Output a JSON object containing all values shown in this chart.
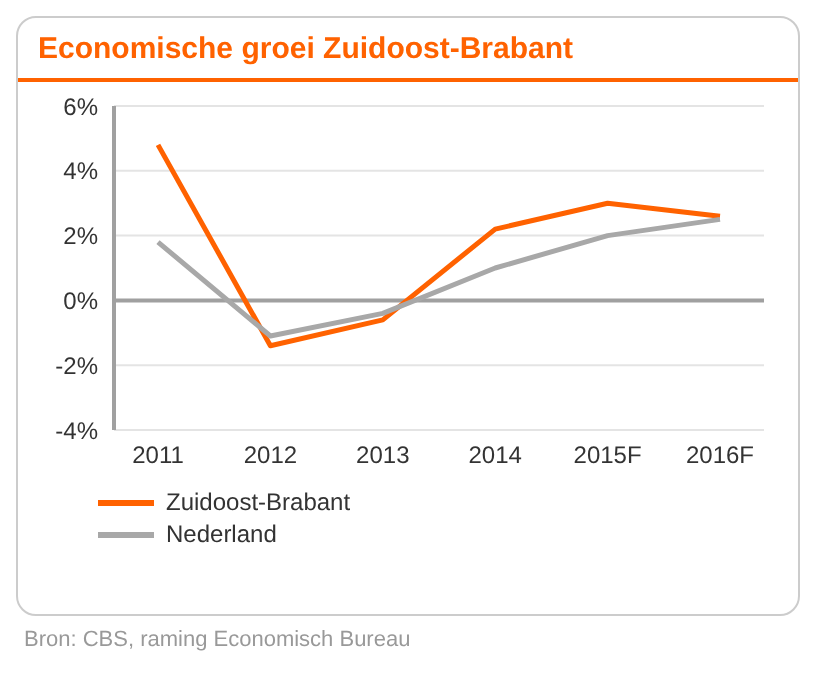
{
  "chart_data": {
    "type": "line",
    "title": "Economische groei Zuidoost-Brabant",
    "categories": [
      "2011",
      "2012",
      "2013",
      "2014",
      "2015F",
      "2016F"
    ],
    "series": [
      {
        "name": "Zuidoost-Brabant",
        "color": "#ff6200",
        "values": [
          4.8,
          -1.4,
          -0.6,
          2.2,
          3.0,
          2.6
        ]
      },
      {
        "name": "Nederland",
        "color": "#a8a8a8",
        "values": [
          1.8,
          -1.1,
          -0.4,
          1.0,
          2.0,
          2.5
        ]
      }
    ],
    "ylim": [
      -4,
      6
    ],
    "yticks": [
      {
        "value": -4,
        "label": "-4%"
      },
      {
        "value": -2,
        "label": "-2%"
      },
      {
        "value": 0,
        "label": "0%"
      },
      {
        "value": 2,
        "label": "2%"
      },
      {
        "value": 4,
        "label": "4%"
      },
      {
        "value": 6,
        "label": "6%"
      }
    ],
    "ref_lines": [
      {
        "axis": "y",
        "value": 0,
        "color": "#a0a0a0"
      }
    ],
    "grid": "y",
    "legend": "bottom left",
    "marker": "none",
    "line_style": "solid",
    "annotations": [
      "Bron: CBS, raming Economisch Bureau"
    ]
  }
}
